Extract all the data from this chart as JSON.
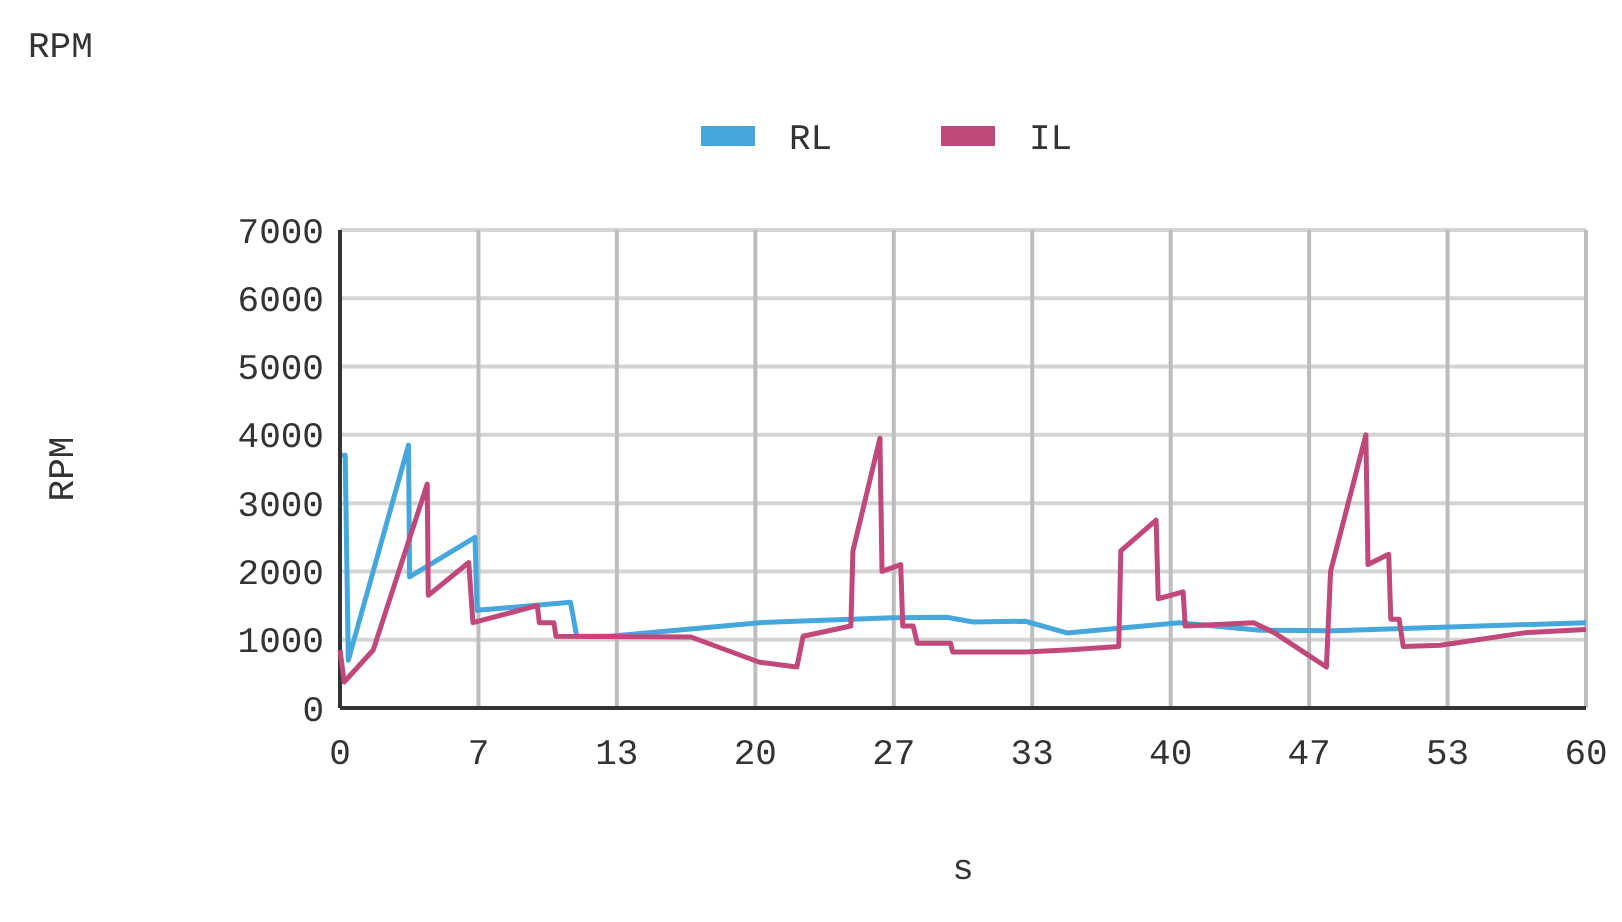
{
  "chart_data": {
    "type": "line",
    "title": "RPM",
    "xlabel": "s",
    "ylabel": "RPM",
    "xlim": [
      0,
      60
    ],
    "xticks": [
      0,
      {
        "value": 6.667,
        "label": "7"
      },
      {
        "value": 13.333,
        "label": "13"
      },
      20,
      {
        "value": 26.667,
        "label": "27"
      },
      {
        "value": 33.333,
        "label": "33"
      },
      40,
      {
        "value": 46.667,
        "label": "47"
      },
      {
        "value": 53.333,
        "label": "53"
      },
      60
    ],
    "ylim": [
      0,
      7000
    ],
    "yticks": [
      0,
      1000,
      2000,
      3000,
      4000,
      5000,
      6000,
      7000
    ],
    "grid": true,
    "legend": "top",
    "marker": "none",
    "line_style": "solid",
    "series": [
      {
        "name": "RL",
        "color": "#45a7dc",
        "x": [
          0.1,
          0.25,
          0.4,
          3.3,
          3.35,
          6.5,
          6.6,
          11.1,
          11.4,
          13,
          20.2,
          26.6,
          29.2,
          30.5,
          33,
          35,
          40.4,
          44.3,
          47.9,
          60
        ],
        "values": [
          3700,
          3700,
          700,
          3850,
          1920,
          2500,
          1430,
          1550,
          1050,
          1050,
          1250,
          1320,
          1330,
          1260,
          1270,
          1100,
          1250,
          1140,
          1130,
          1250
        ]
      },
      {
        "name": "IL",
        "color": "#c0487a",
        "x": [
          0,
          0.2,
          1.6,
          4.2,
          4.25,
          6.2,
          6.4,
          9.5,
          9.6,
          10.3,
          10.4,
          16.9,
          20.2,
          22,
          22.3,
          24.6,
          24.7,
          26,
          26.1,
          27,
          27.1,
          27.6,
          27.8,
          29.4,
          29.5,
          33,
          35,
          37.5,
          37.6,
          39.3,
          39.4,
          40.6,
          40.7,
          44,
          45,
          46.5,
          47.5,
          47.7,
          49.4,
          49.5,
          50.5,
          50.6,
          51,
          51.2,
          53,
          57,
          60
        ],
        "values": [
          850,
          380,
          850,
          3280,
          1650,
          2130,
          1250,
          1500,
          1250,
          1250,
          1050,
          1040,
          670,
          600,
          1050,
          1200,
          2300,
          3950,
          2000,
          2100,
          1200,
          1200,
          950,
          950,
          820,
          820,
          850,
          900,
          2300,
          2750,
          1600,
          1700,
          1200,
          1250,
          1100,
          800,
          600,
          2000,
          4000,
          2100,
          2250,
          1300,
          1300,
          900,
          920,
          1100,
          1150
        ]
      }
    ]
  }
}
